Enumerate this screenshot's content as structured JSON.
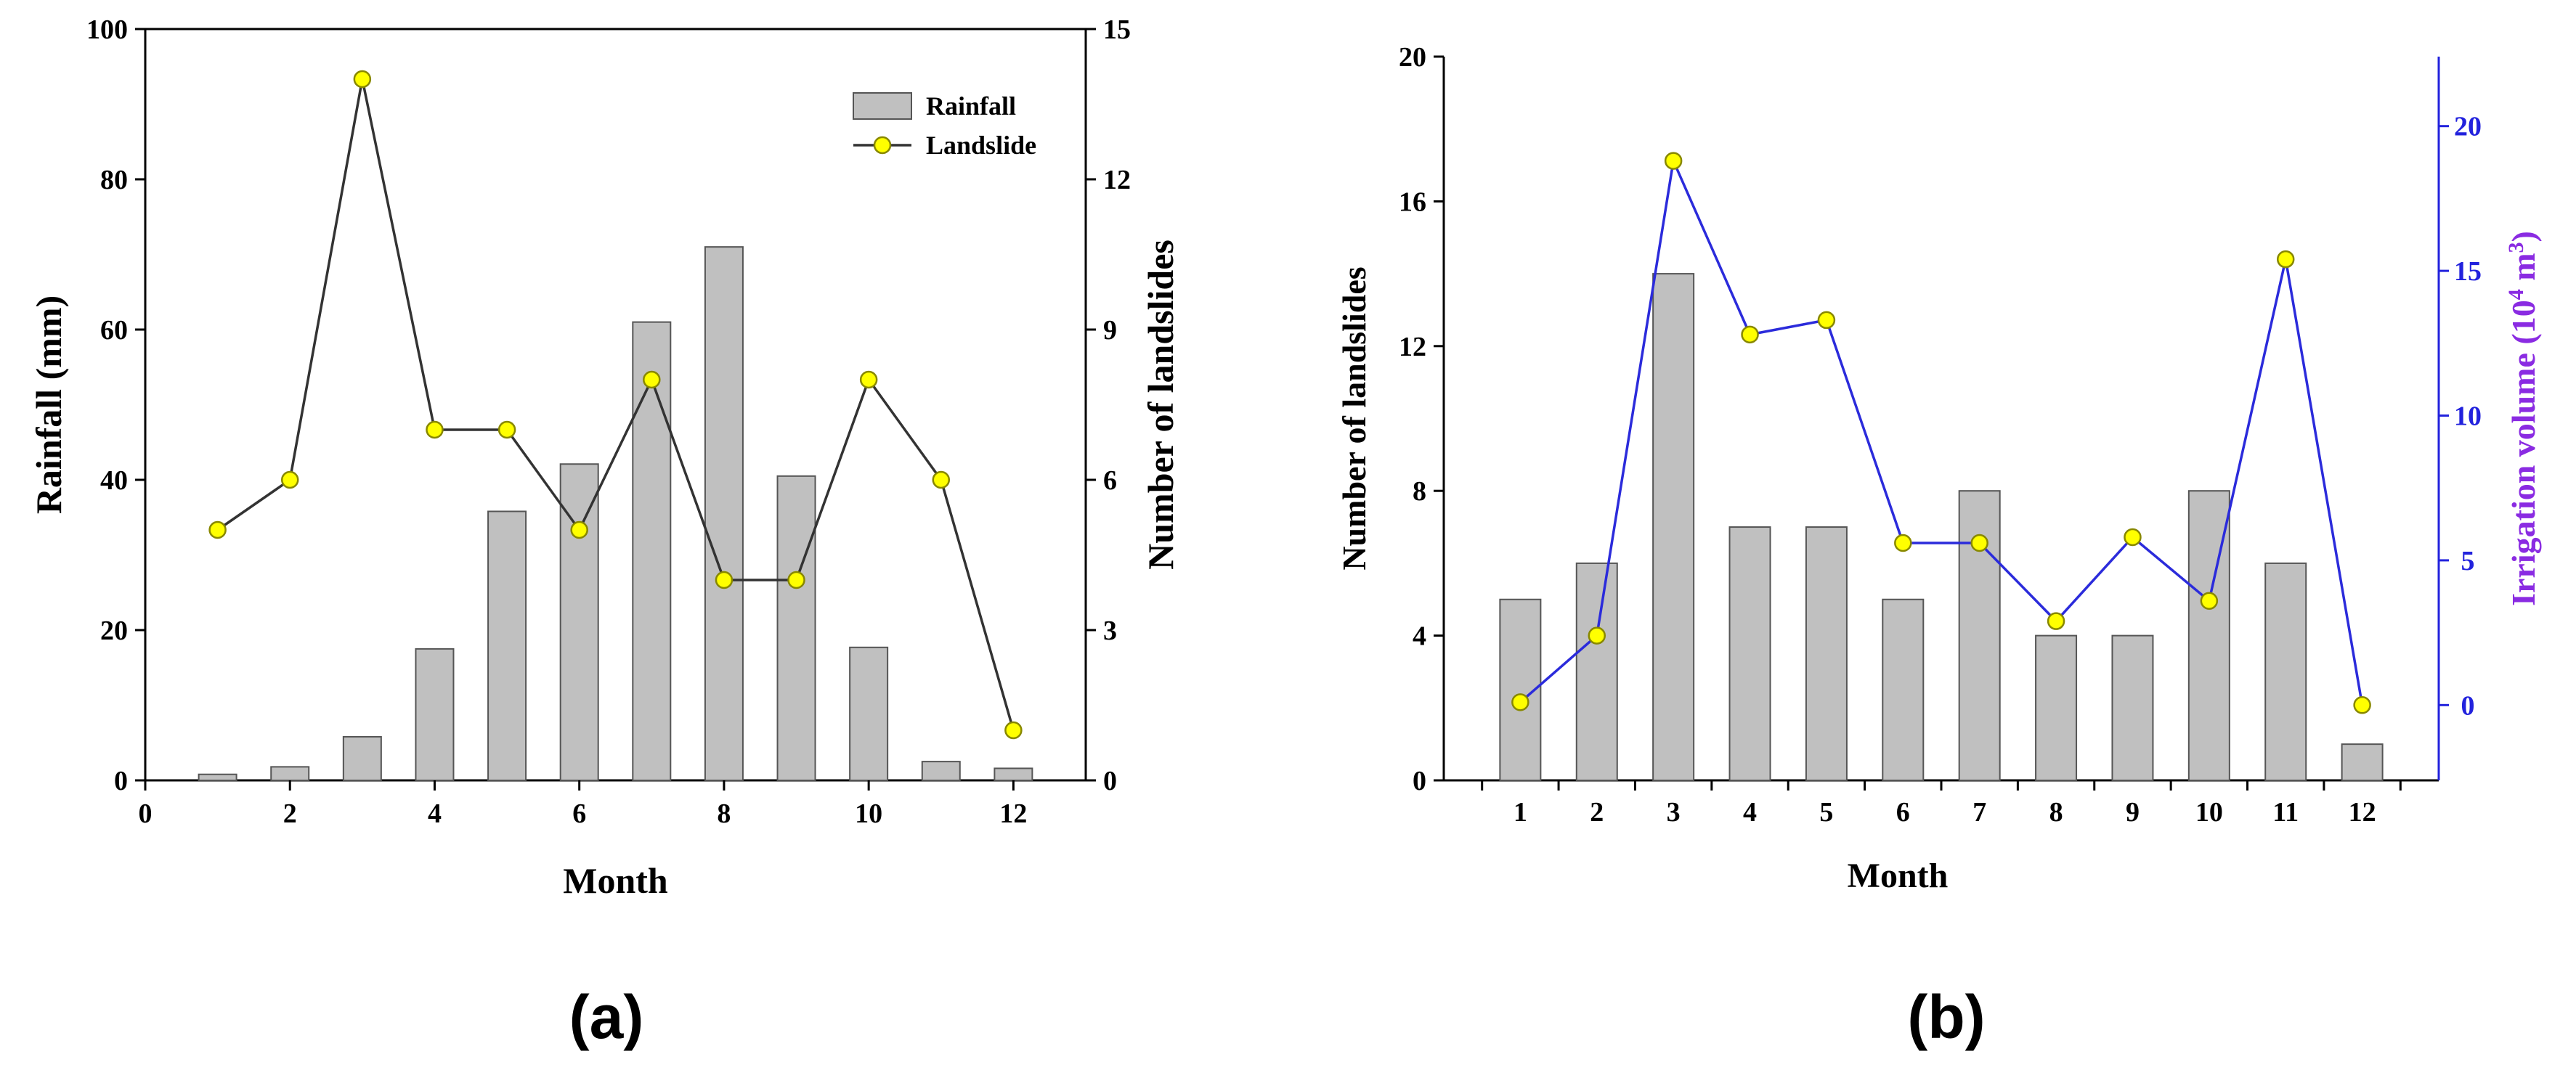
{
  "chart_data": [
    {
      "panel": "(a)",
      "type": "bar+line",
      "categories": [
        1,
        2,
        3,
        4,
        5,
        6,
        7,
        8,
        9,
        10,
        11,
        12
      ],
      "series": [
        {
          "name": "Rainfall",
          "kind": "bar",
          "axis": "left",
          "values": [
            0.8,
            1.8,
            5.8,
            17.5,
            35.8,
            42.1,
            61,
            71,
            40.5,
            17.7,
            2.5,
            1.6
          ]
        },
        {
          "name": "Landslide",
          "kind": "line",
          "axis": "right",
          "values": [
            5,
            6,
            14,
            7,
            7,
            5,
            8,
            4,
            4,
            8,
            6,
            1
          ]
        }
      ],
      "xlabel": "Month",
      "ylabel_left": "Rainfall (mm)",
      "ylabel_right": "Number of landslides",
      "xlim": [
        0,
        13
      ],
      "xticks": [
        "0",
        "2",
        "4",
        "6",
        "8",
        "10",
        "12"
      ],
      "ylim_left": [
        0,
        100
      ],
      "yticks_left": [
        "0",
        "20",
        "40",
        "60",
        "80",
        "100"
      ],
      "ylim_right": [
        0,
        15
      ],
      "yticks_right": [
        "0",
        "3",
        "6",
        "9",
        "12",
        "15"
      ],
      "legend": {
        "placement": "top-right",
        "entries": [
          "Rainfall",
          "Landslide"
        ]
      },
      "grid": false,
      "colors": {
        "bar": "#c0c0c0",
        "bar_edge": "#555555",
        "line": "#333333",
        "marker": "#ffff00",
        "marker_edge": "#888800"
      }
    },
    {
      "panel": "(b)",
      "type": "bar+line",
      "categories": [
        "1",
        "2",
        "3",
        "4",
        "5",
        "6",
        "7",
        "8",
        "9",
        "10",
        "11",
        "12"
      ],
      "series": [
        {
          "name": "Number of landslides",
          "kind": "bar",
          "axis": "left",
          "values": [
            5,
            6,
            14,
            7,
            7,
            5,
            8,
            4,
            4,
            8,
            6,
            1
          ]
        },
        {
          "name": "Irrigation volume",
          "kind": "line",
          "axis": "right",
          "values": [
            0.1,
            2.4,
            18.8,
            12.8,
            13.3,
            5.6,
            5.6,
            2.9,
            5.8,
            3.6,
            15.4,
            0
          ]
        }
      ],
      "xlabel": "Month",
      "ylabel_left": "Number of landslides",
      "ylabel_right": "Irrigation volume (10",
      "ylabel_right_sup1": "4",
      "ylabel_right_mid": " m",
      "ylabel_right_sup2": "3",
      "ylabel_right_end": ")",
      "ylim_left": [
        0,
        20
      ],
      "yticks_left": [
        "0",
        "4",
        "8",
        "12",
        "16",
        "20"
      ],
      "ylim_right": [
        -2.6,
        22.4
      ],
      "yticks_right": [
        "0",
        "5",
        "10",
        "15",
        "20"
      ],
      "grid": false,
      "colors": {
        "bar": "#c0c0c0",
        "bar_edge": "#555555",
        "line": "#2b2bdb",
        "marker": "#ffff00",
        "marker_edge": "#888800",
        "right_axis": "#2222dd",
        "right_label": "#8a2be2"
      }
    }
  ],
  "captions": {
    "a": "(a)",
    "b": "(b)"
  }
}
